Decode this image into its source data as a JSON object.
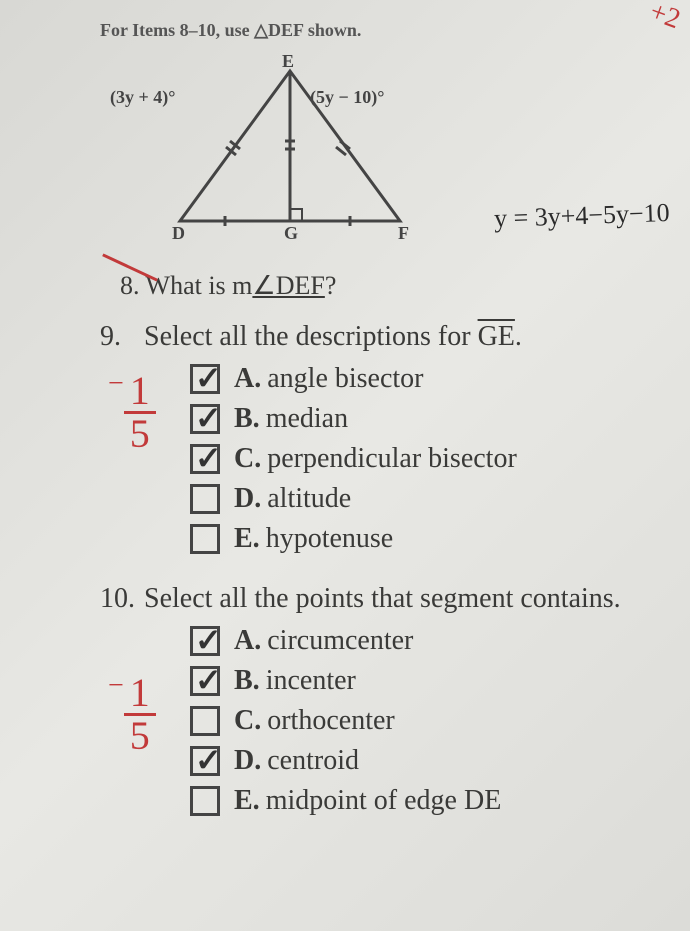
{
  "instruction": "For Items 8–10, use △DEF shown.",
  "diagram": {
    "apex_label": "E",
    "left_vertex": "D",
    "mid_vertex": "G",
    "right_vertex": "F",
    "angle_left": "(3y + 4)°",
    "angle_right": "(5y − 10)°",
    "handwritten_eq": "y = 3y+4−5y−10",
    "corner_handwriting": "+2"
  },
  "q8": {
    "number": "8.",
    "text_prefix": "What is m",
    "angle": "∠DEF",
    "text_suffix": "?"
  },
  "q9": {
    "number": "9.",
    "text_prefix": "Select all the descriptions for ",
    "segment": "GE",
    "text_suffix": ".",
    "score_numer": "1",
    "score_denom": "5",
    "options": [
      {
        "letter": "A.",
        "text": "angle bisector",
        "checked": true
      },
      {
        "letter": "B.",
        "text": "median",
        "checked": true
      },
      {
        "letter": "C.",
        "text": "perpendicular bisector",
        "checked": true
      },
      {
        "letter": "D.",
        "text": "altitude",
        "checked": false
      },
      {
        "letter": "E.",
        "text": "hypotenuse",
        "checked": false
      }
    ]
  },
  "q10": {
    "number": "10.",
    "text": "Select all the points that segment contains.",
    "score_numer": "1",
    "score_denom": "5",
    "options": [
      {
        "letter": "A.",
        "text": "circumcenter",
        "checked": true
      },
      {
        "letter": "B.",
        "text": "incenter",
        "checked": true
      },
      {
        "letter": "C.",
        "text": "orthocenter",
        "checked": false
      },
      {
        "letter": "D.",
        "text": "centroid",
        "checked": true
      },
      {
        "letter": "E.",
        "text": "midpoint of edge DE",
        "checked": false
      }
    ]
  },
  "colors": {
    "red_pen": "#c23a3a",
    "print_text": "#3a3a38",
    "paper_bg": "#e0e0dc"
  }
}
